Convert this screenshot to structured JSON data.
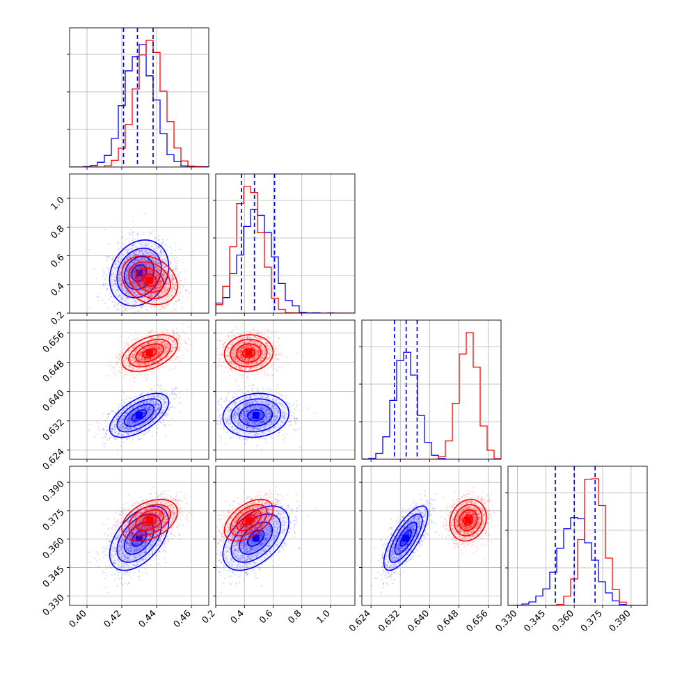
{
  "chart_data": {
    "type": "corner",
    "title": "",
    "parameters": [
      {
        "name": "",
        "range": [
          0.39,
          0.47
        ],
        "ticks": [
          0.4,
          0.42,
          0.44,
          0.46
        ],
        "tick_labels": [
          "0.40",
          "0.42",
          "0.44",
          "0.46"
        ]
      },
      {
        "name": "",
        "range": [
          0.2,
          1.17
        ],
        "ticks": [
          0.2,
          0.4,
          0.6,
          0.8,
          1.0
        ],
        "tick_labels": [
          "0.2",
          "0.4",
          "0.6",
          "0.8",
          "1.0"
        ]
      },
      {
        "name": "",
        "range": [
          0.6215,
          0.6595
        ],
        "ticks": [
          0.624,
          0.632,
          0.64,
          0.648,
          0.656
        ],
        "tick_labels": [
          "0.624",
          "0.632",
          "0.640",
          "0.648",
          "0.656"
        ]
      },
      {
        "name": "",
        "range": [
          0.325,
          0.3985
        ],
        "ticks": [
          0.33,
          0.345,
          0.36,
          0.375,
          0.39
        ],
        "tick_labels": [
          "0.330",
          "0.345",
          "0.360",
          "0.375",
          "0.390"
        ]
      }
    ],
    "series": [
      {
        "color": "#0000ff",
        "mean": [
          0.43,
          0.48,
          0.6335,
          0.3605
        ],
        "std": [
          0.0085,
          0.115,
          0.003,
          0.0085
        ],
        "corr": [
          [
            0.2,
            1,
            0
          ],
          [
            0.6,
            2,
            0
          ],
          [
            0.5,
            3,
            0
          ],
          [
            0.1,
            2,
            1
          ],
          [
            0.5,
            3,
            1
          ],
          [
            0.75,
            3,
            2
          ]
        ],
        "quantiles_1d": [
          [
            0.421,
            0.429,
            0.438
          ],
          [
            0.38,
            0.47,
            0.61
          ],
          [
            0.6304,
            0.6336,
            0.6366
          ],
          [
            0.35,
            0.36,
            0.371
          ]
        ],
        "hist_peak": [
          0.0,
          0.0,
          0.0,
          0.0
        ]
      },
      {
        "color": "#ff0000",
        "mean": [
          0.436,
          0.43,
          0.6505,
          0.37
        ],
        "std": [
          0.008,
          0.085,
          0.0025,
          0.0055
        ],
        "corr": [
          [
            -0.25,
            1,
            0
          ],
          [
            0.45,
            2,
            0
          ],
          [
            0.4,
            3,
            0
          ],
          [
            0.05,
            2,
            1
          ],
          [
            0.5,
            3,
            1
          ],
          [
            0.15,
            3,
            2
          ]
        ],
        "quantiles_1d": null,
        "hist_peak": [
          0.0,
          0.0,
          0.0,
          0.0
        ]
      }
    ],
    "quantile_line_color": "#0000ff",
    "grid": true,
    "legend": "none"
  }
}
